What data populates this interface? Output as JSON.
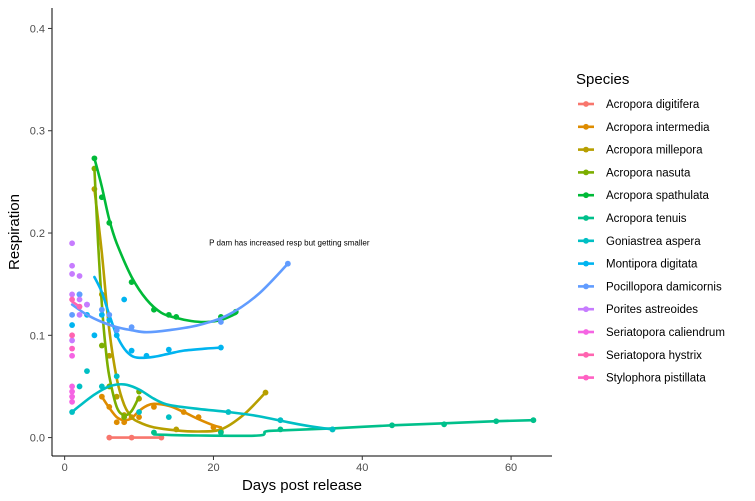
{
  "chart_data": {
    "type": "scatter",
    "xlabel": "Days post release",
    "ylabel": "Respiration",
    "xlim": [
      -1.7,
      65.5
    ],
    "ylim": [
      -0.018,
      0.42
    ],
    "xticks": [
      0,
      20,
      40,
      60
    ],
    "yticks": [
      0.0,
      0.1,
      0.2,
      0.3,
      0.4
    ],
    "ytick_labels": [
      "0.0",
      "0.1",
      "0.2",
      "0.3",
      "0.4"
    ],
    "grid": false,
    "legend": {
      "title": "Species",
      "placement": "right"
    },
    "annotation": {
      "text": "P dam has increased resp but getting smaller",
      "x": 30.2,
      "y": 0.188
    },
    "series": [
      {
        "name": "Acropora digitifera",
        "color": "#F8766D",
        "points": [
          [
            6,
            0
          ],
          [
            9,
            0
          ],
          [
            13,
            0
          ]
        ],
        "curve": [
          [
            6,
            0
          ],
          [
            13,
            0
          ]
        ]
      },
      {
        "name": "Acropora intermedia",
        "color": "#DE8C00",
        "points": [
          [
            5,
            0.04
          ],
          [
            6,
            0.03
          ],
          [
            7,
            0.015
          ],
          [
            8,
            0.015
          ],
          [
            9,
            0.02
          ],
          [
            10,
            0.02
          ],
          [
            12,
            0.03
          ],
          [
            16,
            0.025
          ],
          [
            18,
            0.02
          ],
          [
            20,
            0.01
          ]
        ],
        "curve": [
          [
            5,
            0.04
          ],
          [
            6,
            0.029
          ],
          [
            7,
            0.02
          ],
          [
            8,
            0.017
          ],
          [
            9,
            0.019
          ],
          [
            10,
            0.026
          ],
          [
            11,
            0.031
          ],
          [
            12,
            0.033
          ],
          [
            14,
            0.031
          ],
          [
            16,
            0.025
          ],
          [
            18,
            0.018
          ],
          [
            20,
            0.012
          ],
          [
            21,
            0.01
          ]
        ]
      },
      {
        "name": "Acropora millepora",
        "color": "#B79F00",
        "points": [
          [
            4,
            0.243
          ],
          [
            5,
            0.14
          ],
          [
            6,
            0.08
          ],
          [
            7,
            0.04
          ],
          [
            8,
            0.022
          ],
          [
            10,
            0.038
          ],
          [
            15,
            0.008
          ],
          [
            21,
            0.006
          ],
          [
            27,
            0.044
          ]
        ],
        "curve": [
          [
            4,
            0.243
          ],
          [
            5,
            0.18
          ],
          [
            6,
            0.105
          ],
          [
            7,
            0.058
          ],
          [
            8,
            0.032
          ],
          [
            9,
            0.02
          ],
          [
            10,
            0.015
          ],
          [
            12,
            0.01
          ],
          [
            15,
            0.007
          ],
          [
            18,
            0.006
          ],
          [
            21,
            0.008
          ],
          [
            24,
            0.022
          ],
          [
            27,
            0.044
          ]
        ]
      },
      {
        "name": "Acropora nasuta",
        "color": "#7CAE00",
        "points": [
          [
            4,
            0.263
          ],
          [
            5,
            0.09
          ],
          [
            6,
            0.05
          ],
          [
            8,
            0.02
          ],
          [
            10,
            0.045
          ]
        ],
        "curve": [
          [
            4,
            0.263
          ],
          [
            4.5,
            0.19
          ],
          [
            5,
            0.13
          ],
          [
            5.5,
            0.088
          ],
          [
            6,
            0.06
          ],
          [
            7,
            0.03
          ],
          [
            8,
            0.022
          ],
          [
            9,
            0.026
          ],
          [
            10,
            0.04
          ]
        ]
      },
      {
        "name": "Acropora spathulata",
        "color": "#00BA38",
        "points": [
          [
            4,
            0.273
          ],
          [
            5,
            0.235
          ],
          [
            6,
            0.21
          ],
          [
            9,
            0.152
          ],
          [
            12,
            0.125
          ],
          [
            14,
            0.12
          ],
          [
            15,
            0.118
          ],
          [
            21,
            0.118
          ],
          [
            23,
            0.123
          ]
        ],
        "curve": [
          [
            4,
            0.273
          ],
          [
            5,
            0.245
          ],
          [
            6,
            0.213
          ],
          [
            7,
            0.19
          ],
          [
            9,
            0.157
          ],
          [
            11,
            0.135
          ],
          [
            13,
            0.122
          ],
          [
            15,
            0.117
          ],
          [
            17,
            0.114
          ],
          [
            19,
            0.113
          ],
          [
            21,
            0.115
          ],
          [
            23,
            0.121
          ]
        ]
      },
      {
        "name": "Acropora tenuis",
        "color": "#00C08B",
        "points": [
          [
            12,
            0.005
          ],
          [
            21,
            0.005
          ],
          [
            29,
            0.008
          ],
          [
            36,
            0.008
          ],
          [
            44,
            0.012
          ],
          [
            51,
            0.013
          ],
          [
            58,
            0.016
          ],
          [
            63,
            0.017
          ]
        ],
        "curve": [
          [
            12,
            0.003
          ],
          [
            18,
            0.002
          ],
          [
            26,
            0.002
          ],
          [
            27,
            0.006
          ],
          [
            29,
            0.007
          ],
          [
            36,
            0.009
          ],
          [
            44,
            0.012
          ],
          [
            51,
            0.014
          ],
          [
            58,
            0.016
          ],
          [
            63,
            0.017
          ]
        ]
      },
      {
        "name": "Goniastrea aspera",
        "color": "#00BFC4",
        "points": [
          [
            1,
            0.025
          ],
          [
            2,
            0.05
          ],
          [
            3,
            0.065
          ],
          [
            5,
            0.05
          ],
          [
            7,
            0.06
          ],
          [
            10,
            0.025
          ],
          [
            14,
            0.02
          ],
          [
            22,
            0.025
          ],
          [
            29,
            0.017
          ],
          [
            36,
            0.008
          ]
        ],
        "curve": [
          [
            1,
            0.025
          ],
          [
            2,
            0.031
          ],
          [
            4,
            0.042
          ],
          [
            6,
            0.05
          ],
          [
            8,
            0.052
          ],
          [
            10,
            0.047
          ],
          [
            12,
            0.038
          ],
          [
            14,
            0.032
          ],
          [
            18,
            0.028
          ],
          [
            22,
            0.025
          ],
          [
            26,
            0.021
          ],
          [
            30,
            0.015
          ],
          [
            33,
            0.011
          ],
          [
            36,
            0.008
          ]
        ]
      },
      {
        "name": "Montipora digitata",
        "color": "#00B4F0",
        "points": [
          [
            1,
            0.11
          ],
          [
            2,
            0.14
          ],
          [
            3,
            0.12
          ],
          [
            4,
            0.1
          ],
          [
            5,
            0.12
          ],
          [
            6,
            0.115
          ],
          [
            7,
            0.1
          ],
          [
            8,
            0.135
          ],
          [
            9,
            0.085
          ],
          [
            11,
            0.08
          ],
          [
            14,
            0.086
          ],
          [
            21,
            0.088
          ]
        ],
        "curve": [
          [
            4,
            0.157
          ],
          [
            5,
            0.142
          ],
          [
            6,
            0.12
          ],
          [
            7,
            0.1
          ],
          [
            8,
            0.087
          ],
          [
            9,
            0.08
          ],
          [
            10,
            0.078
          ],
          [
            12,
            0.079
          ],
          [
            14,
            0.082
          ],
          [
            16,
            0.085
          ],
          [
            19,
            0.087
          ],
          [
            21,
            0.088
          ]
        ]
      },
      {
        "name": "Pocillopora damicornis",
        "color": "#619CFF",
        "points": [
          [
            1,
            0.12
          ],
          [
            2,
            0.14
          ],
          [
            3,
            0.13
          ],
          [
            5,
            0.125
          ],
          [
            6,
            0.12
          ],
          [
            7,
            0.105
          ],
          [
            9,
            0.108
          ],
          [
            21,
            0.113
          ],
          [
            30,
            0.17
          ]
        ],
        "curve": [
          [
            1,
            0.13
          ],
          [
            3,
            0.12
          ],
          [
            5,
            0.113
          ],
          [
            7,
            0.108
          ],
          [
            9,
            0.105
          ],
          [
            11,
            0.103
          ],
          [
            14,
            0.105
          ],
          [
            18,
            0.11
          ],
          [
            22,
            0.12
          ],
          [
            26,
            0.14
          ],
          [
            30,
            0.17
          ]
        ]
      },
      {
        "name": "Porites astreoides",
        "color": "#C77CFF",
        "points": [
          [
            1,
            0.19
          ],
          [
            1,
            0.168
          ],
          [
            1,
            0.16
          ],
          [
            1,
            0.14
          ],
          [
            1,
            0.095
          ],
          [
            2,
            0.158
          ],
          [
            2,
            0.135
          ],
          [
            2,
            0.12
          ],
          [
            3,
            0.13
          ]
        ],
        "curve": []
      },
      {
        "name": "Seriatopora caliendrum",
        "color": "#F564E3",
        "points": [
          [
            1,
            0.05
          ],
          [
            1,
            0.045
          ],
          [
            1,
            0.04
          ],
          [
            1,
            0.035
          ],
          [
            1,
            0.08
          ]
        ],
        "curve": []
      },
      {
        "name": "Seriatopora hystrix",
        "color": "#FF64B0",
        "points": [
          [
            1,
            0.135
          ],
          [
            1,
            0.1
          ],
          [
            2,
            0.128
          ]
        ],
        "curve": [
          [
            1,
            0.133
          ],
          [
            2,
            0.128
          ]
        ]
      },
      {
        "name": "Stylophora pistillata",
        "color": "#FF61C3",
        "points": [
          [
            1,
            0.087
          ]
        ],
        "curve": []
      }
    ]
  }
}
